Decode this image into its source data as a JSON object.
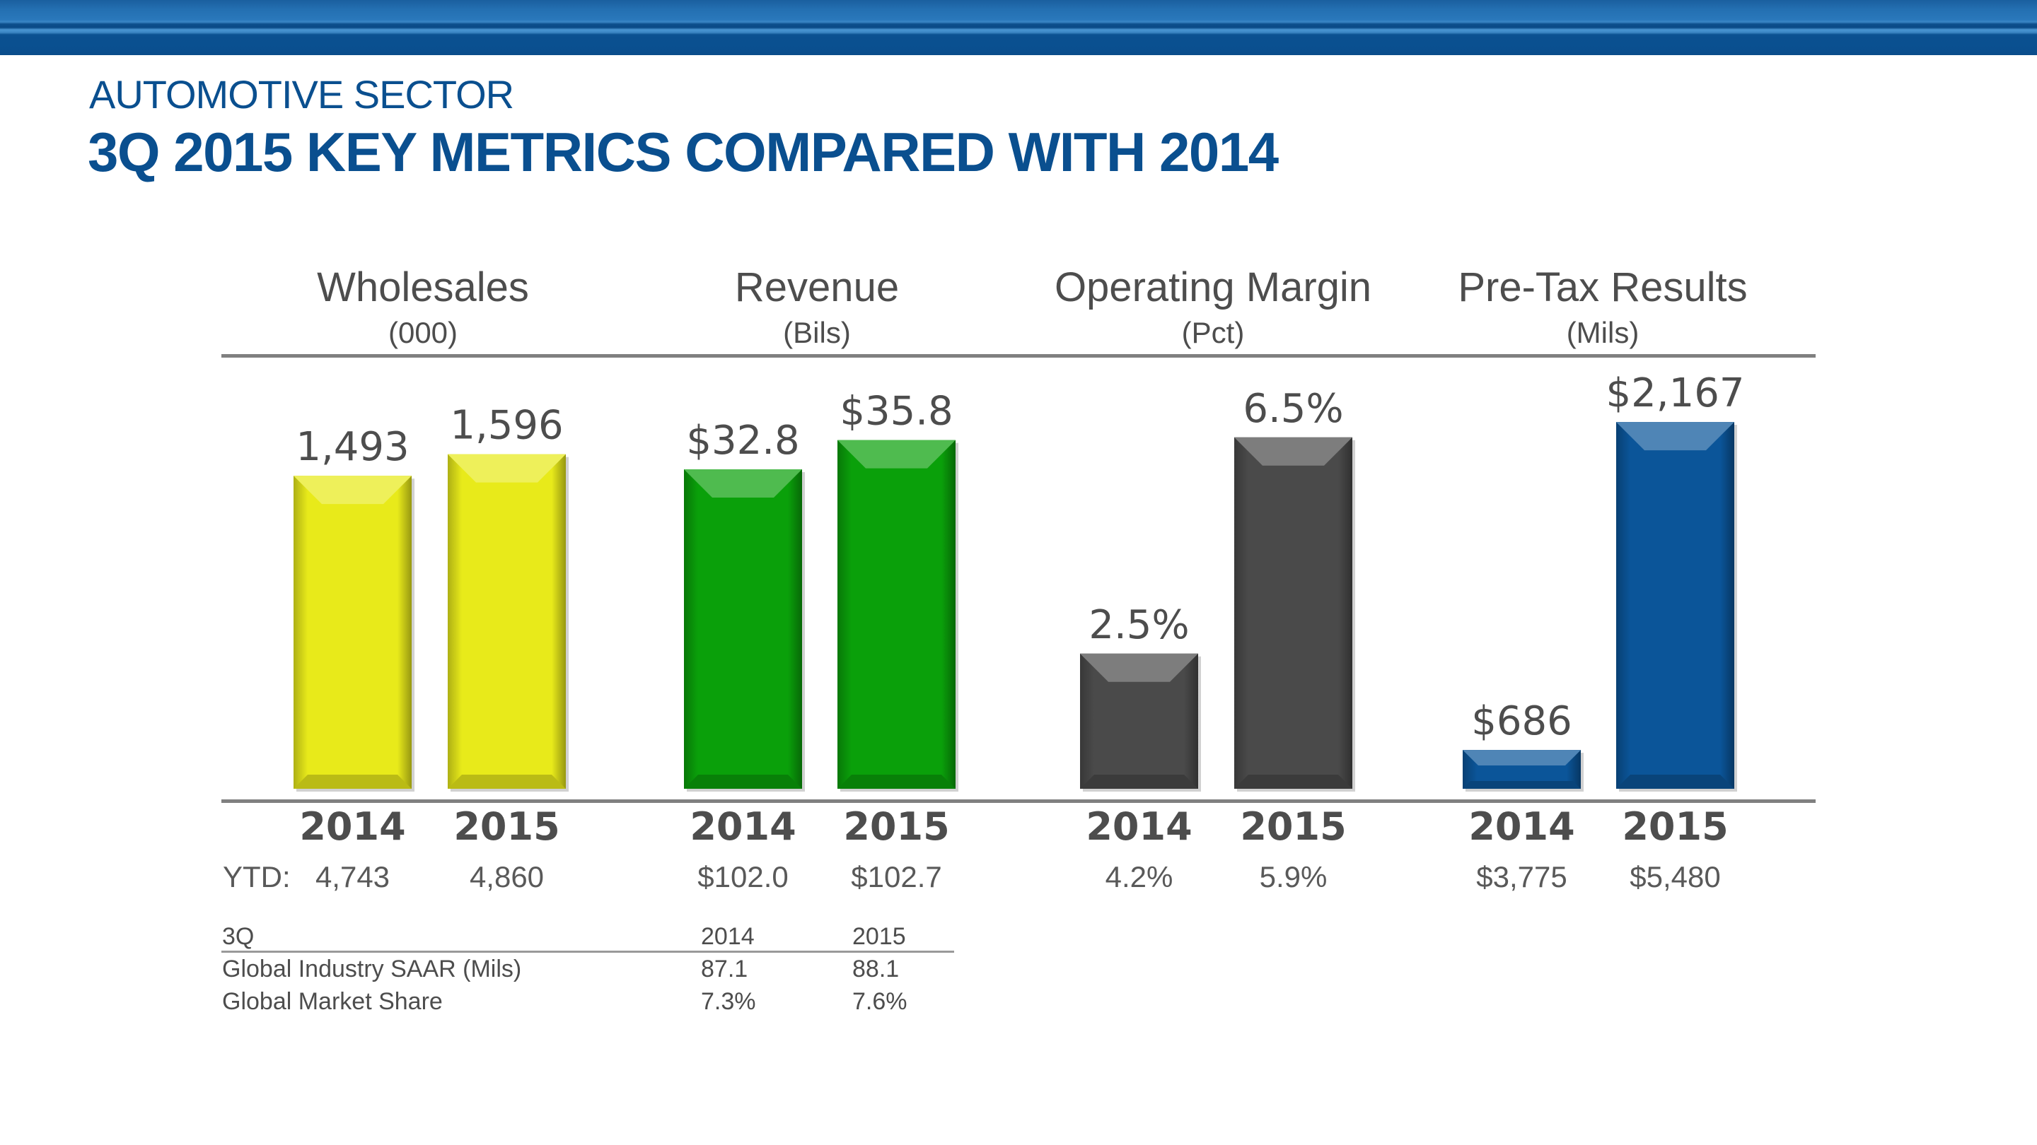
{
  "header": {
    "kicker": "AUTOMOTIVE SECTOR",
    "title": "3Q 2015 KEY METRICS COMPARED WITH 2014"
  },
  "chart_data": {
    "type": "bar",
    "title": "3Q 2015 KEY METRICS COMPARED WITH 2014",
    "categories": [
      "2014",
      "2015"
    ],
    "ytd_label": "YTD:",
    "groups": [
      {
        "name": "Wholesales",
        "unit": "(000)",
        "color": "#e8ea1a",
        "values": [
          1493,
          1596
        ],
        "labels": [
          "1,493",
          "1,596"
        ],
        "ytd": [
          "4,743",
          "4,860"
        ]
      },
      {
        "name": "Revenue",
        "unit": "(Bils)",
        "color": "#0aa00a",
        "values": [
          32.8,
          35.8
        ],
        "labels": [
          "$32.8",
          "$35.8"
        ],
        "ytd": [
          "$102.0",
          "$102.7"
        ]
      },
      {
        "name": "Operating Margin",
        "unit": "(Pct)",
        "color": "#4a4a4a",
        "values": [
          2.5,
          6.5
        ],
        "labels": [
          "2.5%",
          "6.5%"
        ],
        "ytd": [
          "4.2%",
          "5.9%"
        ]
      },
      {
        "name": "Pre-Tax Results",
        "unit": "(Mils)",
        "color": "#0b5599",
        "values": [
          686,
          2167
        ],
        "labels": [
          "$686",
          "$2,167"
        ],
        "ytd": [
          "$3,775",
          "$5,480"
        ]
      }
    ],
    "xlabel": "",
    "ylabel": "",
    "grid": false,
    "legend": "none"
  },
  "table": {
    "header": [
      "3Q",
      "2014",
      "2015"
    ],
    "rows": [
      [
        "Global Industry SAAR (Mils)",
        "87.1",
        "88.1"
      ],
      [
        "Global Market Share",
        "7.3%",
        "7.6%"
      ]
    ]
  }
}
